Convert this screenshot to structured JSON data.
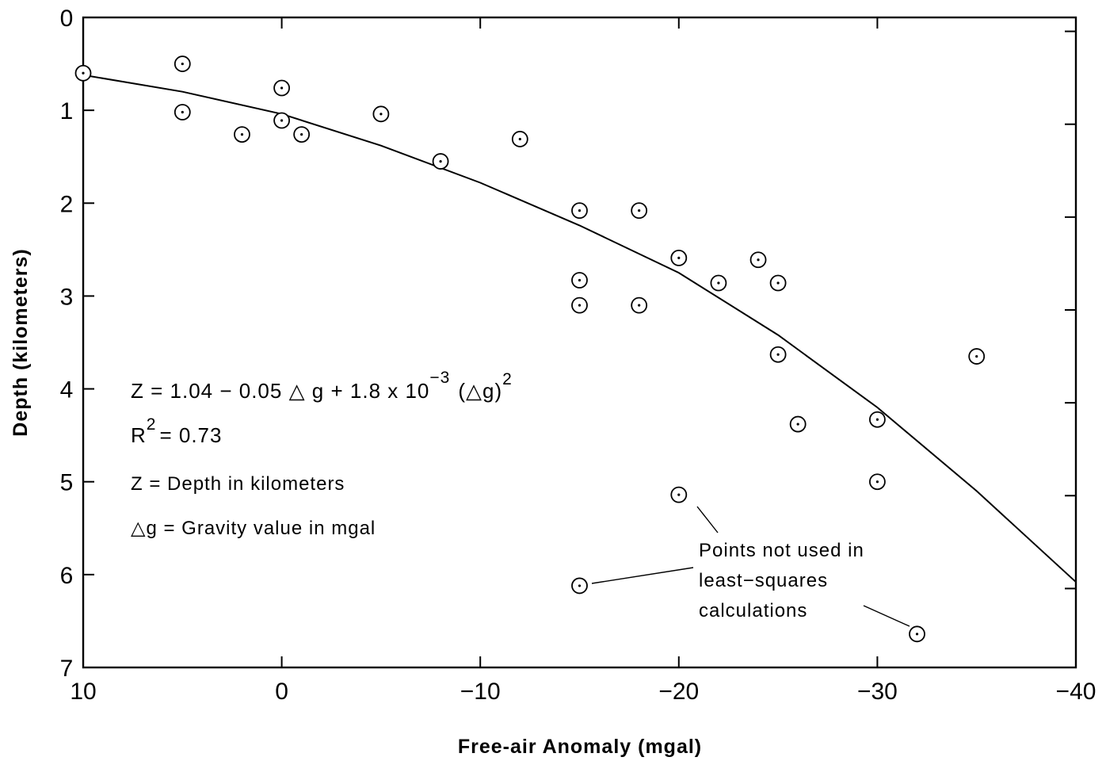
{
  "chart_data": {
    "type": "scatter",
    "xlabel": "Free-air Anomaly (mgal)",
    "ylabel": "Depth (kilometers)",
    "xlim": [
      10,
      -40
    ],
    "ylim": [
      0,
      7
    ],
    "y_inverted": true,
    "x_ticks": [
      10,
      0,
      -10,
      -20,
      -30,
      -40
    ],
    "x_tick_labels": [
      "10",
      "0",
      "−10",
      "−20",
      "−30",
      "−40"
    ],
    "y_ticks": [
      0,
      1,
      2,
      3,
      4,
      5,
      6,
      7
    ],
    "y_tick_labels": [
      "0",
      "1",
      "2",
      "3",
      "4",
      "5",
      "6",
      "7"
    ],
    "grid": false,
    "points": [
      {
        "x": 10,
        "y": 0.6
      },
      {
        "x": 5,
        "y": 0.5
      },
      {
        "x": 5,
        "y": 1.02
      },
      {
        "x": 0,
        "y": 0.76
      },
      {
        "x": 0,
        "y": 1.11
      },
      {
        "x": 2,
        "y": 1.26
      },
      {
        "x": -1,
        "y": 1.26
      },
      {
        "x": -5,
        "y": 1.04
      },
      {
        "x": -8,
        "y": 1.55
      },
      {
        "x": -12,
        "y": 1.31
      },
      {
        "x": -15,
        "y": 2.08
      },
      {
        "x": -15,
        "y": 2.83
      },
      {
        "x": -15,
        "y": 3.1
      },
      {
        "x": -18,
        "y": 2.08
      },
      {
        "x": -18,
        "y": 3.1
      },
      {
        "x": -20,
        "y": 2.59
      },
      {
        "x": -22,
        "y": 2.86
      },
      {
        "x": -24,
        "y": 2.61
      },
      {
        "x": -25,
        "y": 2.86
      },
      {
        "x": -25,
        "y": 3.63
      },
      {
        "x": -26,
        "y": 4.38
      },
      {
        "x": -30,
        "y": 4.33
      },
      {
        "x": -30,
        "y": 5.0
      },
      {
        "x": -35,
        "y": 3.65
      }
    ],
    "excluded_points": [
      {
        "x": -20,
        "y": 5.14
      },
      {
        "x": -15,
        "y": 6.12
      },
      {
        "x": -32,
        "y": 6.64
      }
    ],
    "fit_curve": {
      "type": "quadratic",
      "points": [
        {
          "x": 10,
          "y": 0.62
        },
        {
          "x": 5,
          "y": 0.8
        },
        {
          "x": 0,
          "y": 1.04
        },
        {
          "x": -5,
          "y": 1.38
        },
        {
          "x": -10,
          "y": 1.78
        },
        {
          "x": -15,
          "y": 2.24
        },
        {
          "x": -20,
          "y": 2.75
        },
        {
          "x": -25,
          "y": 3.42
        },
        {
          "x": -30,
          "y": 4.2
        },
        {
          "x": -35,
          "y": 5.1
        },
        {
          "x": -40,
          "y": 6.08
        }
      ]
    },
    "annotations": {
      "equation_main": "Z = 1.04 − 0.05 △ g + 1.8 x 10",
      "equation_exp": "−3",
      "equation_tail": "(△g)",
      "equation_sq": "2",
      "r2_prefix": "R",
      "r2_exp": "2",
      "r2_value": "= 0.73",
      "z_def": "Z = Depth in kilometers",
      "g_def": "△g = Gravity value in mgal",
      "excluded_note": [
        "Points not used in",
        "least−squares",
        "calculations"
      ]
    }
  }
}
